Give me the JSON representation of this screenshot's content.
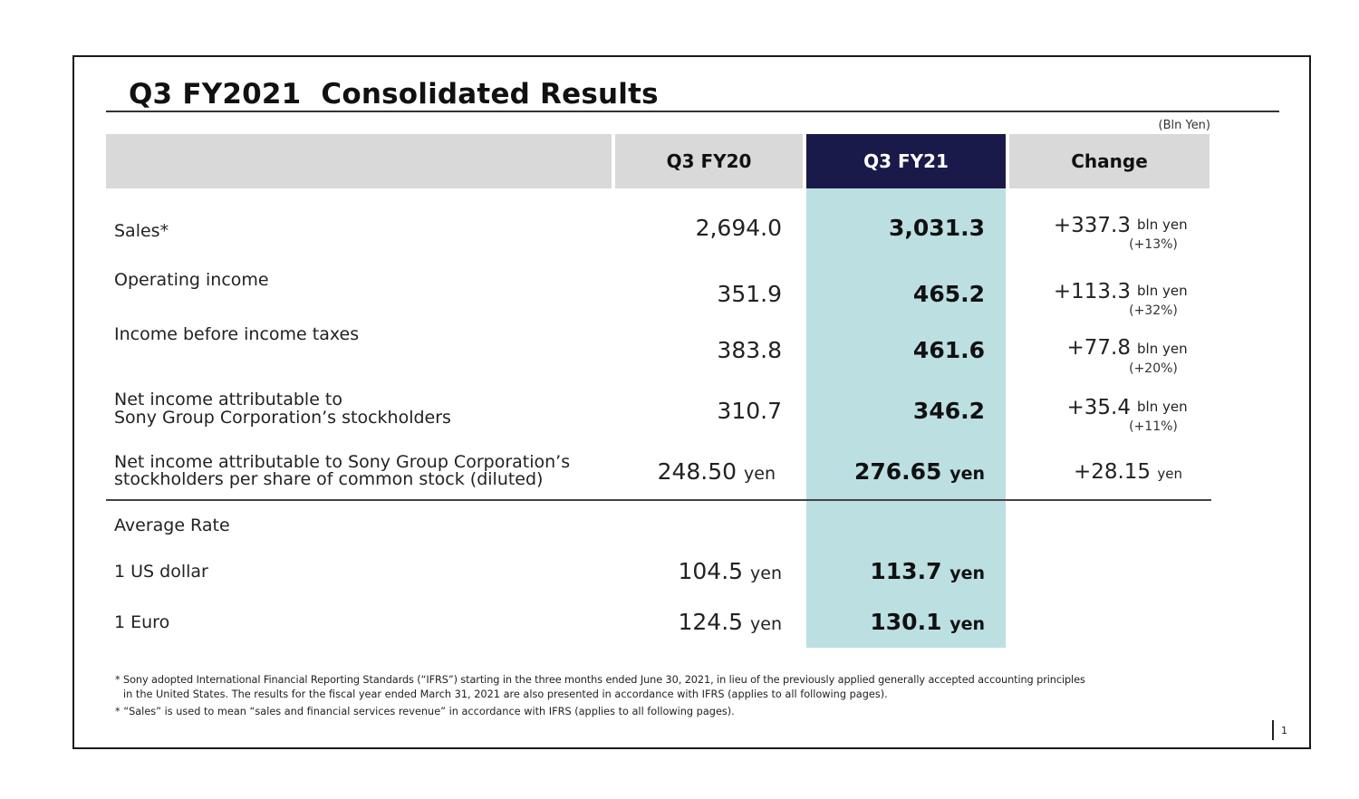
{
  "title": "Q3 FY2021  Consolidated Results",
  "unit_note": "(Bln Yen)",
  "headers": {
    "blank": "",
    "prev": "Q3 FY20",
    "cur": "Q3 FY21",
    "change": "Change"
  },
  "rows": [
    {
      "label": "Sales*",
      "prev": "2,694.0",
      "cur": "3,031.3",
      "change": "+337.3",
      "change_unit": "bln yen",
      "pct": "(+13%)"
    },
    {
      "label": "Operating income",
      "prev": "351.9",
      "cur": "465.2",
      "change": "+113.3",
      "change_unit": "bln yen",
      "pct": "(+32%)"
    },
    {
      "label": "Income before income taxes",
      "prev": "383.8",
      "cur": "461.6",
      "change": "+77.8",
      "change_unit": "bln yen",
      "pct": "(+20%)"
    },
    {
      "label_line1": "Net income attributable to",
      "label_line2": "Sony Group Corporation’s stockholders",
      "prev": "310.7",
      "cur": "346.2",
      "change": "+35.4",
      "change_unit": "bln yen",
      "pct": "(+11%)"
    },
    {
      "label_line1": "Net income attributable to Sony Group Corporation’s",
      "label_line2": "stockholders per share of common stock (diluted)",
      "prev": "248.50",
      "prev_unit": "yen",
      "cur": "276.65",
      "cur_unit": "yen",
      "change": "+28.15",
      "change_unit": "yen"
    }
  ],
  "rates": {
    "heading": "Average Rate",
    "items": [
      {
        "label": "1 US dollar",
        "prev": "104.5",
        "prev_unit": "yen",
        "cur": "113.7",
        "cur_unit": "yen"
      },
      {
        "label": "1 Euro",
        "prev": "124.5",
        "prev_unit": "yen",
        "cur": "130.1",
        "cur_unit": "yen"
      }
    ]
  },
  "footnotes": {
    "note1_line1": "* Sony adopted International Financial Reporting Standards (“IFRS”) starting in the three months ended June 30, 2021, in lieu of the previously applied generally accepted accounting principles",
    "note1_line2": "in the United States. The results for the fiscal year ended March 31, 2021 are also presented in accordance with IFRS (applies to all following pages).",
    "note2": "* “Sales” is used to mean “sales and financial services revenue” in accordance with IFRS (applies to all following pages)."
  },
  "page_number": "1",
  "colors": {
    "header_gray": "#d9d9d9",
    "header_navy": "#1a1a4a",
    "highlight_teal": "#bcdfe2"
  }
}
